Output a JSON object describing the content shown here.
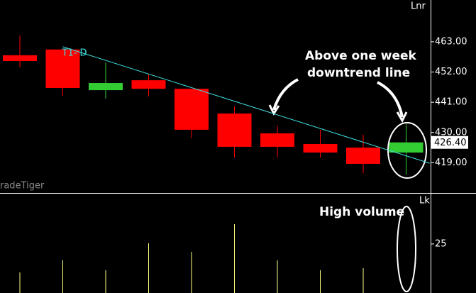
{
  "chart_data": {
    "type": "candlestick",
    "price_unit": "Lnr",
    "volume_unit": "Lk",
    "watermark": "radeTiger",
    "candles": {
      "open": [
        458.1,
        460.2,
        445.4,
        449.0,
        445.9,
        436.9,
        429.7,
        425.8,
        424.5,
        422.7
      ],
      "high": [
        465.3,
        460.2,
        455.5,
        451.1,
        445.9,
        439.5,
        432.5,
        431.0,
        429.2,
        433.0
      ],
      "low": [
        453.7,
        443.4,
        442.3,
        443.1,
        427.9,
        420.9,
        420.9,
        420.9,
        415.2,
        414.7
      ],
      "close": [
        456.0,
        446.2,
        448.0,
        445.9,
        431.0,
        424.8,
        424.8,
        422.7,
        418.6,
        426.4
      ],
      "up_color": "#33cc33",
      "down_color": "#ff0000"
    },
    "volume": {
      "values": [
        10.5,
        16.7,
        11.6,
        25.4,
        21.0,
        35.1,
        16.7,
        11.6,
        12.7,
        null
      ],
      "color": "#ffff80",
      "ylim": [
        0,
        51
      ],
      "yticks": [
        25
      ]
    },
    "ylim": [
      408,
      478.2
    ],
    "yticks": [
      {
        "value": 463,
        "label": "463.00"
      },
      {
        "value": 452,
        "label": "452.00"
      },
      {
        "value": 441,
        "label": "441.00"
      },
      {
        "value": 430,
        "label": "430.00"
      },
      {
        "value": 419,
        "label": "419.00"
      }
    ],
    "last_price": {
      "value": 426.4,
      "label": "426.40"
    },
    "trendline": {
      "label": "T1- D",
      "x": [
        1,
        9.55
      ],
      "y": [
        461.2,
        418.8
      ],
      "color": "#40e0e0"
    },
    "annotations": {
      "downtrend": [
        "Above one week",
        "downtrend line"
      ],
      "volume": "High volume"
    }
  }
}
